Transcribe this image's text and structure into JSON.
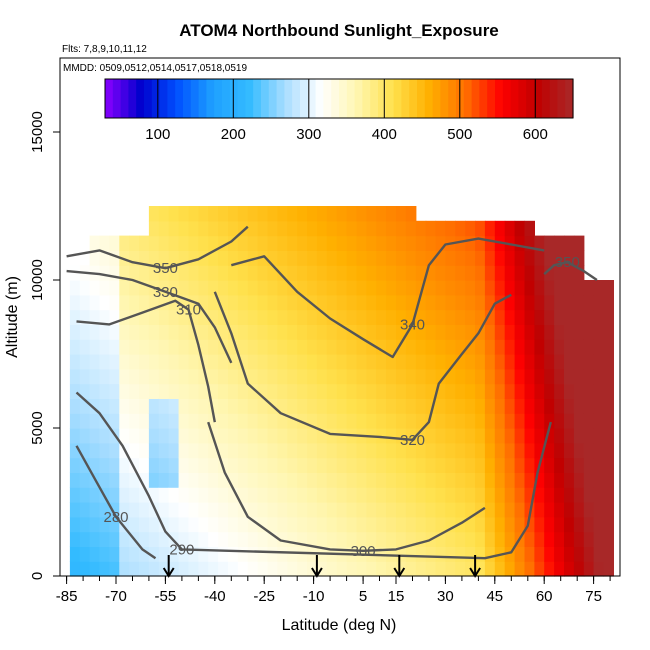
{
  "chart_data": {
    "type": "heatmap",
    "title": "ATOM4 Northbound Sunlight_Exposure",
    "flights_label": "Flts: 7,8,9,10,11,12",
    "dates_label": "MMDD: 0509,0512,0514,0517,0518,0519",
    "xlabel": "Latitude (deg N)",
    "ylabel": "Altitude (m)",
    "xlim": [
      -87,
      83
    ],
    "ylim": [
      0,
      17500
    ],
    "x_ticks": [
      -85,
      -70,
      -55,
      -40,
      -25,
      -10,
      5,
      15,
      30,
      45,
      60,
      75
    ],
    "y_ticks": [
      0,
      5000,
      10000,
      15000
    ],
    "colorbar": {
      "range": [
        30,
        650
      ],
      "ticks": [
        100,
        200,
        300,
        400,
        500,
        600
      ],
      "colors": [
        "#8b00ff",
        "#0000cd",
        "#0050ff",
        "#1ea0ff",
        "#33bbff",
        "#a8ddff",
        "#ffffff",
        "#fff6b0",
        "#ffe14d",
        "#ffb000",
        "#ff7000",
        "#ff0000",
        "#c00000",
        "#a82828"
      ]
    },
    "profile_latitudes": [
      -54,
      -9,
      16,
      39
    ],
    "contours": [
      {
        "label": "350",
        "values": [
          [
            -85,
            10800
          ],
          [
            -75,
            11000
          ],
          [
            -65,
            10600
          ],
          [
            -55,
            10400
          ],
          [
            -45,
            10700
          ],
          [
            -35,
            11300
          ],
          [
            -30,
            11800
          ]
        ]
      },
      {
        "label": "330",
        "values": [
          [
            -85,
            10300
          ],
          [
            -75,
            10200
          ],
          [
            -65,
            10000
          ],
          [
            -55,
            9600
          ],
          [
            -45,
            9200
          ],
          [
            -40,
            8400
          ],
          [
            -35,
            7200
          ]
        ]
      },
      {
        "label": "310",
        "values": [
          [
            -82,
            8600
          ],
          [
            -72,
            8500
          ],
          [
            -62,
            8900
          ],
          [
            -52,
            9300
          ],
          [
            -48,
            9000
          ],
          [
            -45,
            7800
          ],
          [
            -42,
            6400
          ],
          [
            -40,
            5200
          ]
        ]
      },
      {
        "label": "340",
        "values": [
          [
            -35,
            10500
          ],
          [
            -25,
            10800
          ],
          [
            -15,
            9600
          ],
          [
            -5,
            8700
          ],
          [
            5,
            8000
          ],
          [
            14,
            7400
          ],
          [
            20,
            8500
          ],
          [
            25,
            10500
          ],
          [
            30,
            11200
          ],
          [
            40,
            11400
          ],
          [
            50,
            11200
          ],
          [
            60,
            11000
          ]
        ]
      },
      {
        "label": "320",
        "values": [
          [
            -40,
            9600
          ],
          [
            -35,
            8200
          ],
          [
            -30,
            6500
          ],
          [
            -20,
            5500
          ],
          [
            -5,
            4800
          ],
          [
            10,
            4700
          ],
          [
            20,
            4600
          ],
          [
            25,
            5200
          ],
          [
            28,
            6500
          ],
          [
            35,
            7500
          ],
          [
            40,
            8200
          ],
          [
            45,
            9200
          ],
          [
            50,
            9500
          ]
        ]
      },
      {
        "label": "300",
        "values": [
          [
            -42,
            5200
          ],
          [
            -37,
            3500
          ],
          [
            -30,
            2000
          ],
          [
            -20,
            1200
          ],
          [
            -5,
            900
          ],
          [
            5,
            850
          ],
          [
            15,
            900
          ],
          [
            25,
            1200
          ],
          [
            35,
            1800
          ],
          [
            42,
            2300
          ]
        ]
      },
      {
        "label": "290",
        "values": [
          [
            -82,
            6200
          ],
          [
            -75,
            5500
          ],
          [
            -68,
            4400
          ],
          [
            -60,
            2700
          ],
          [
            -55,
            1500
          ],
          [
            -50,
            900
          ],
          [
            42,
            600
          ],
          [
            50,
            800
          ],
          [
            55,
            1700
          ],
          [
            58,
            3500
          ],
          [
            62,
            5200
          ]
        ]
      },
      {
        "label": "280",
        "values": [
          [
            -82,
            4400
          ],
          [
            -76,
            3200
          ],
          [
            -70,
            2000
          ],
          [
            -62,
            900
          ],
          [
            -58,
            600
          ]
        ]
      },
      {
        "label": "350",
        "values": [
          [
            60,
            10200
          ],
          [
            63,
            10500
          ],
          [
            67,
            10600
          ],
          [
            72,
            10300
          ],
          [
            76,
            10000
          ]
        ]
      }
    ]
  }
}
